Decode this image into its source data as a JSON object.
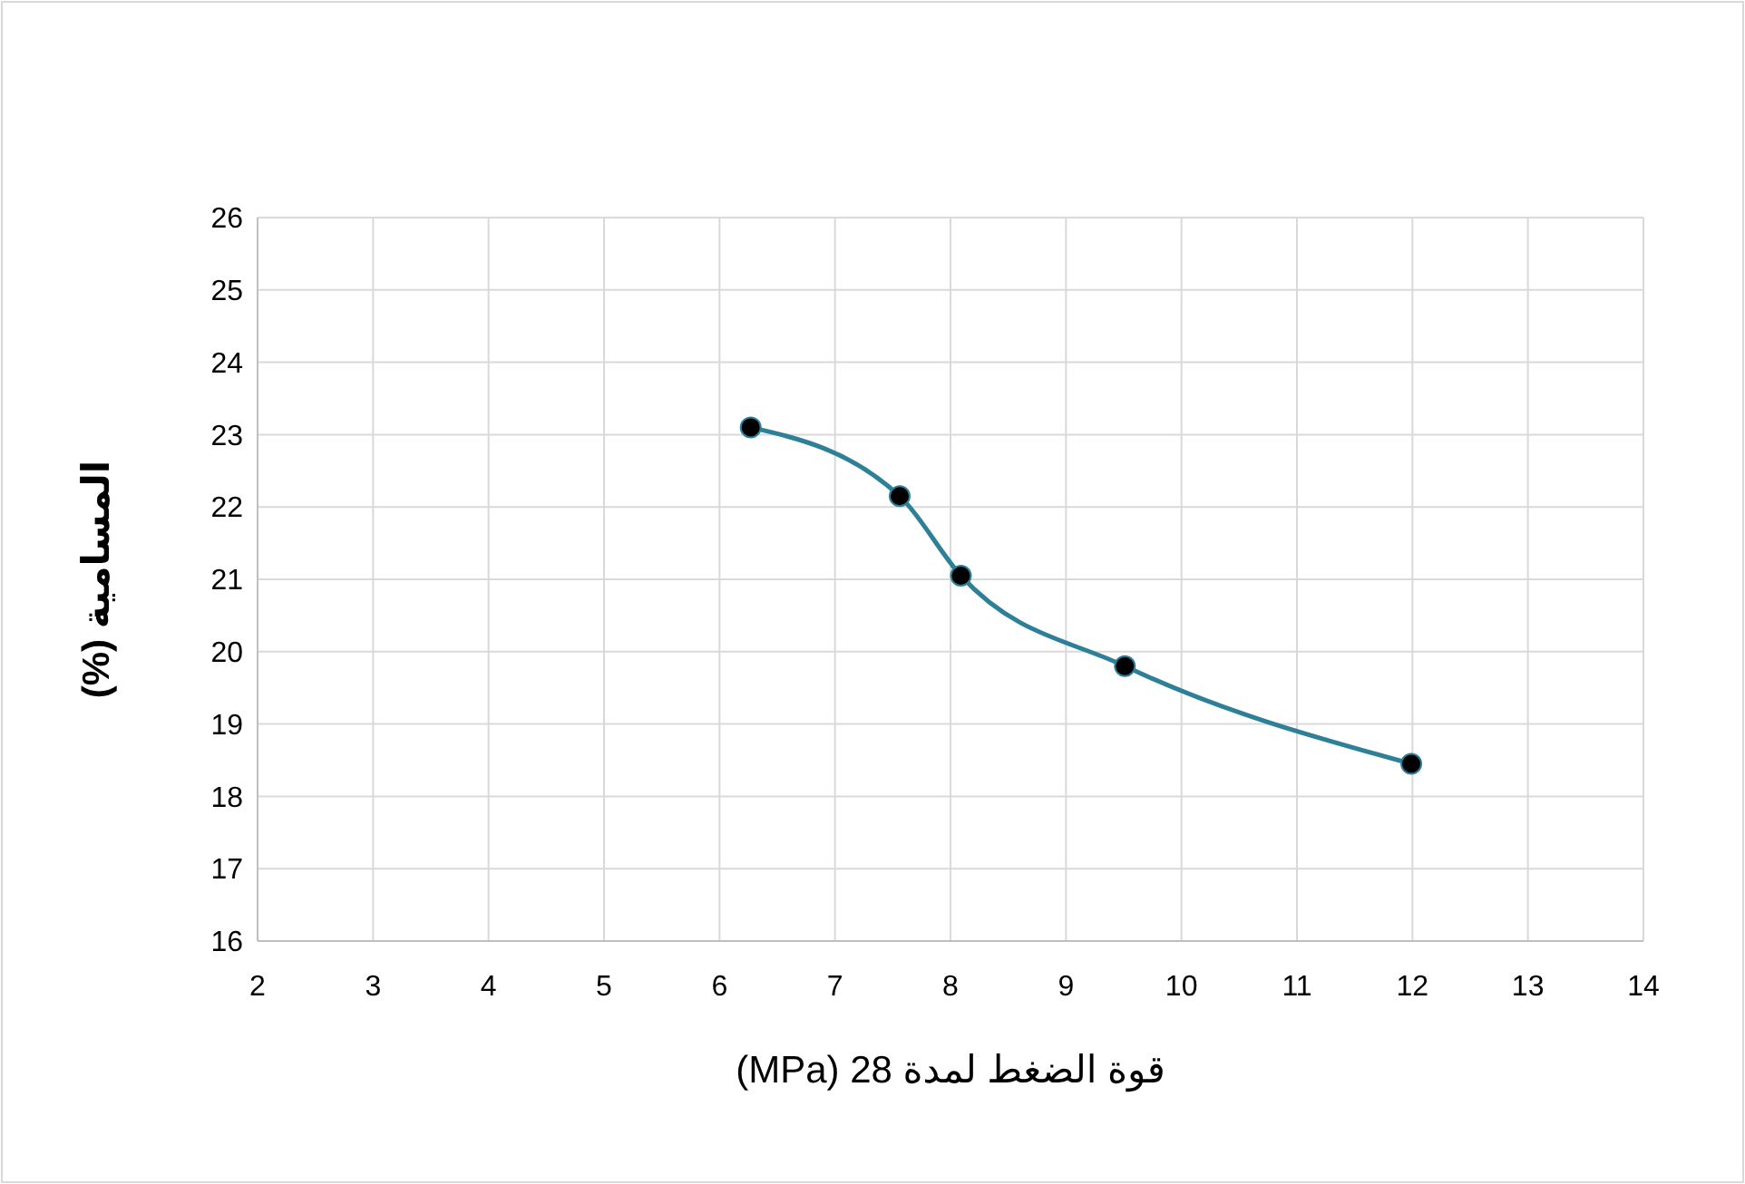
{
  "chart_data": {
    "type": "line",
    "xlabel": "قوة الضغط لمدة 28 (MPa)",
    "ylabel": "المسامية (%)",
    "x": [
      6.27,
      7.56,
      8.09,
      9.51,
      11.99
    ],
    "series": [
      {
        "color": "#2e7f98",
        "values": [
          23.1,
          22.15,
          21.05,
          19.8,
          18.45
        ]
      }
    ],
    "xlim": [
      2,
      14
    ],
    "xticks": [
      2,
      3,
      4,
      5,
      6,
      7,
      8,
      9,
      10,
      11,
      12,
      13,
      14
    ],
    "ylim": [
      16,
      26
    ],
    "yticks": [
      16,
      17,
      18,
      19,
      20,
      21,
      22,
      23,
      24,
      25,
      26
    ],
    "grid": true,
    "marker": "circle",
    "line_style": "solid"
  }
}
